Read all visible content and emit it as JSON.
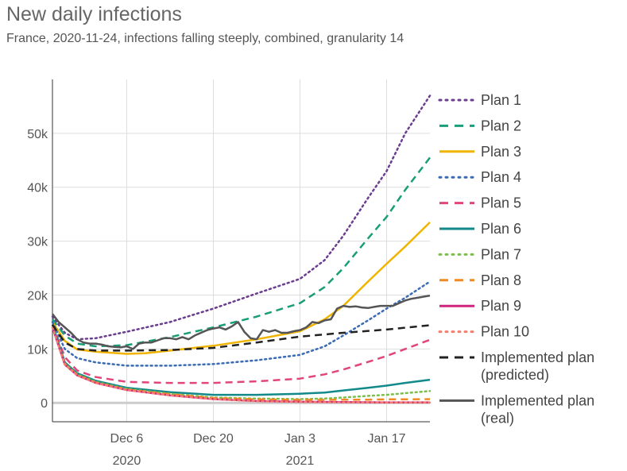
{
  "chart_data": {
    "type": "line",
    "title": "New daily infections",
    "subtitle": "France, 2020-11-24, infections falling steeply, combined, granularity 14",
    "x_ticks": [
      {
        "date": "2020-12-06",
        "label": "Dec 6",
        "sublabel": "2020"
      },
      {
        "date": "2020-12-20",
        "label": "Dec 20",
        "sublabel": ""
      },
      {
        "date": "2021-01-03",
        "label": "Jan 3",
        "sublabel": "2021"
      },
      {
        "date": "2021-01-17",
        "label": "Jan 17",
        "sublabel": ""
      }
    ],
    "x_range": [
      "2020-11-24",
      "2021-01-24"
    ],
    "y_ticks": [
      {
        "value": 0,
        "label": "0"
      },
      {
        "value": 10000,
        "label": "10k"
      },
      {
        "value": 20000,
        "label": "20k"
      },
      {
        "value": 30000,
        "label": "30k"
      },
      {
        "value": 40000,
        "label": "40k"
      },
      {
        "value": 50000,
        "label": "50k"
      }
    ],
    "ylim": [
      -3500,
      60000
    ],
    "grid": true,
    "legend_position": "right",
    "series": [
      {
        "name": "Plan 1",
        "color": "#6a3d8f",
        "dash": "dotted",
        "points": [
          [
            "2020-11-24",
            16000
          ],
          [
            "2020-11-26",
            13000
          ],
          [
            "2020-11-28",
            11800
          ],
          [
            "2020-12-01",
            12000
          ],
          [
            "2020-12-06",
            13200
          ],
          [
            "2020-12-13",
            15000
          ],
          [
            "2020-12-20",
            17500
          ],
          [
            "2020-12-27",
            20300
          ],
          [
            "2021-01-03",
            23000
          ],
          [
            "2021-01-07",
            26500
          ],
          [
            "2021-01-10",
            31000
          ],
          [
            "2021-01-14",
            38000
          ],
          [
            "2021-01-17",
            43000
          ],
          [
            "2021-01-20",
            50000
          ],
          [
            "2021-01-24",
            57000
          ]
        ]
      },
      {
        "name": "Plan 2",
        "color": "#1a9e77",
        "dash": "dashed",
        "points": [
          [
            "2020-11-24",
            15500
          ],
          [
            "2020-11-26",
            12500
          ],
          [
            "2020-11-28",
            11000
          ],
          [
            "2020-12-01",
            10500
          ],
          [
            "2020-12-06",
            10700
          ],
          [
            "2020-12-13",
            12200
          ],
          [
            "2020-12-20",
            14000
          ],
          [
            "2020-12-27",
            16000
          ],
          [
            "2021-01-03",
            18500
          ],
          [
            "2021-01-07",
            21500
          ],
          [
            "2021-01-10",
            25000
          ],
          [
            "2021-01-14",
            30500
          ],
          [
            "2021-01-17",
            34500
          ],
          [
            "2021-01-20",
            39500
          ],
          [
            "2021-01-24",
            45500
          ]
        ]
      },
      {
        "name": "Plan 3",
        "color": "#f0b400",
        "dash": "solid",
        "points": [
          [
            "2020-11-24",
            15000
          ],
          [
            "2020-11-26",
            11500
          ],
          [
            "2020-11-28",
            9900
          ],
          [
            "2020-12-01",
            9500
          ],
          [
            "2020-12-06",
            9100
          ],
          [
            "2020-12-09",
            9200
          ],
          [
            "2020-12-13",
            9700
          ],
          [
            "2020-12-20",
            10600
          ],
          [
            "2020-12-27",
            11800
          ],
          [
            "2021-01-03",
            13300
          ],
          [
            "2021-01-07",
            15500
          ],
          [
            "2021-01-10",
            18000
          ],
          [
            "2021-01-14",
            22500
          ],
          [
            "2021-01-17",
            25800
          ],
          [
            "2021-01-20",
            29000
          ],
          [
            "2021-01-24",
            33500
          ]
        ]
      },
      {
        "name": "Plan 4",
        "color": "#3b6bb5",
        "dash": "dotted",
        "points": [
          [
            "2020-11-24",
            15000
          ],
          [
            "2020-11-26",
            10000
          ],
          [
            "2020-11-28",
            8300
          ],
          [
            "2020-12-01",
            7500
          ],
          [
            "2020-12-06",
            6900
          ],
          [
            "2020-12-13",
            6900
          ],
          [
            "2020-12-20",
            7200
          ],
          [
            "2020-12-27",
            7900
          ],
          [
            "2021-01-03",
            8900
          ],
          [
            "2021-01-07",
            10500
          ],
          [
            "2021-01-10",
            12500
          ],
          [
            "2021-01-14",
            15300
          ],
          [
            "2021-01-17",
            17500
          ],
          [
            "2021-01-20",
            19500
          ],
          [
            "2021-01-24",
            22500
          ]
        ]
      },
      {
        "name": "Plan 5",
        "color": "#e0457b",
        "dash": "dashed",
        "points": [
          [
            "2020-11-24",
            14500
          ],
          [
            "2020-11-26",
            8500
          ],
          [
            "2020-11-28",
            6000
          ],
          [
            "2020-12-01",
            4800
          ],
          [
            "2020-12-06",
            3900
          ],
          [
            "2020-12-13",
            3700
          ],
          [
            "2020-12-20",
            3700
          ],
          [
            "2020-12-27",
            4000
          ],
          [
            "2021-01-03",
            4500
          ],
          [
            "2021-01-07",
            5300
          ],
          [
            "2021-01-10",
            6200
          ],
          [
            "2021-01-14",
            7600
          ],
          [
            "2021-01-17",
            8700
          ],
          [
            "2021-01-20",
            10000
          ],
          [
            "2021-01-24",
            11700
          ]
        ]
      },
      {
        "name": "Plan 6",
        "color": "#13898a",
        "dash": "solid",
        "points": [
          [
            "2020-11-24",
            14500
          ],
          [
            "2020-11-26",
            7500
          ],
          [
            "2020-11-28",
            5500
          ],
          [
            "2020-12-01",
            4100
          ],
          [
            "2020-12-06",
            2800
          ],
          [
            "2020-12-13",
            2000
          ],
          [
            "2020-12-20",
            1500
          ],
          [
            "2020-12-27",
            1500
          ],
          [
            "2021-01-03",
            1700
          ],
          [
            "2021-01-07",
            1900
          ],
          [
            "2021-01-10",
            2300
          ],
          [
            "2021-01-14",
            2800
          ],
          [
            "2021-01-17",
            3200
          ],
          [
            "2021-01-20",
            3700
          ],
          [
            "2021-01-24",
            4300
          ]
        ]
      },
      {
        "name": "Plan 7",
        "color": "#7cbf4a",
        "dash": "dotted",
        "points": [
          [
            "2020-11-24",
            14000
          ],
          [
            "2020-11-26",
            7300
          ],
          [
            "2020-11-28",
            5300
          ],
          [
            "2020-12-01",
            3900
          ],
          [
            "2020-12-06",
            2600
          ],
          [
            "2020-12-13",
            1700
          ],
          [
            "2020-12-20",
            1000
          ],
          [
            "2020-12-27",
            800
          ],
          [
            "2021-01-03",
            700
          ],
          [
            "2021-01-07",
            800
          ],
          [
            "2021-01-10",
            1000
          ],
          [
            "2021-01-14",
            1300
          ],
          [
            "2021-01-17",
            1500
          ],
          [
            "2021-01-20",
            1800
          ],
          [
            "2021-01-24",
            2200
          ]
        ]
      },
      {
        "name": "Plan 8",
        "color": "#f08a24",
        "dash": "dashed",
        "points": [
          [
            "2020-11-24",
            14000
          ],
          [
            "2020-11-26",
            7200
          ],
          [
            "2020-11-28",
            5200
          ],
          [
            "2020-12-01",
            3800
          ],
          [
            "2020-12-06",
            2500
          ],
          [
            "2020-12-13",
            1600
          ],
          [
            "2020-12-20",
            900
          ],
          [
            "2020-12-27",
            650
          ],
          [
            "2021-01-03",
            550
          ],
          [
            "2021-01-07",
            550
          ],
          [
            "2021-01-10",
            600
          ],
          [
            "2021-01-14",
            600
          ],
          [
            "2021-01-17",
            650
          ],
          [
            "2021-01-20",
            650
          ],
          [
            "2021-01-24",
            700
          ]
        ]
      },
      {
        "name": "Plan 9",
        "color": "#d0257f",
        "dash": "solid",
        "points": [
          [
            "2020-11-24",
            14000
          ],
          [
            "2020-11-26",
            7100
          ],
          [
            "2020-11-28",
            5100
          ],
          [
            "2020-12-01",
            3700
          ],
          [
            "2020-12-06",
            2400
          ],
          [
            "2020-12-13",
            1400
          ],
          [
            "2020-12-20",
            700
          ],
          [
            "2020-12-27",
            350
          ],
          [
            "2021-01-03",
            200
          ],
          [
            "2021-01-10",
            150
          ],
          [
            "2021-01-17",
            100
          ],
          [
            "2021-01-24",
            100
          ]
        ]
      },
      {
        "name": "Plan 10",
        "color": "#f47e6e",
        "dash": "dotted",
        "points": [
          [
            "2020-11-24",
            14000
          ],
          [
            "2020-11-26",
            7100
          ],
          [
            "2020-11-28",
            5100
          ],
          [
            "2020-12-01",
            3700
          ],
          [
            "2020-12-06",
            2400
          ],
          [
            "2020-12-13",
            1400
          ],
          [
            "2020-12-20",
            700
          ],
          [
            "2020-12-27",
            300
          ],
          [
            "2021-01-03",
            150
          ],
          [
            "2021-01-10",
            100
          ],
          [
            "2021-01-17",
            80
          ],
          [
            "2021-01-24",
            80
          ]
        ]
      },
      {
        "name": "Implemented plan\n(predicted)",
        "color": "#222222",
        "dash": "dashed",
        "points": [
          [
            "2020-11-24",
            14500
          ],
          [
            "2020-11-26",
            11200
          ],
          [
            "2020-11-28",
            10000
          ],
          [
            "2020-12-01",
            9700
          ],
          [
            "2020-12-06",
            9700
          ],
          [
            "2020-12-13",
            9800
          ],
          [
            "2020-12-20",
            10200
          ],
          [
            "2020-12-27",
            11200
          ],
          [
            "2021-01-03",
            12300
          ],
          [
            "2021-01-10",
            13000
          ],
          [
            "2021-01-17",
            13600
          ],
          [
            "2021-01-24",
            14400
          ]
        ]
      },
      {
        "name": "Implemented plan\n(real)",
        "color": "#555555",
        "dash": "solid",
        "points": [
          [
            "2020-11-24",
            16500
          ],
          [
            "2020-11-25",
            15000
          ],
          [
            "2020-11-26",
            14000
          ],
          [
            "2020-11-27",
            13000
          ],
          [
            "2020-11-28",
            11800
          ],
          [
            "2020-11-29",
            11200
          ],
          [
            "2020-11-30",
            11000
          ],
          [
            "2020-12-01",
            11000
          ],
          [
            "2020-12-02",
            10800
          ],
          [
            "2020-12-03",
            10500
          ],
          [
            "2020-12-04",
            10400
          ],
          [
            "2020-12-05",
            10300
          ],
          [
            "2020-12-06",
            10500
          ],
          [
            "2020-12-07",
            10000
          ],
          [
            "2020-12-08",
            11000
          ],
          [
            "2020-12-09",
            11200
          ],
          [
            "2020-12-10",
            11200
          ],
          [
            "2020-12-11",
            11600
          ],
          [
            "2020-12-12",
            12000
          ],
          [
            "2020-12-13",
            12000
          ],
          [
            "2020-12-14",
            11800
          ],
          [
            "2020-12-15",
            12200
          ],
          [
            "2020-12-16",
            11800
          ],
          [
            "2020-12-17",
            12500
          ],
          [
            "2020-12-18",
            13000
          ],
          [
            "2020-12-19",
            13500
          ],
          [
            "2020-12-20",
            13800
          ],
          [
            "2020-12-21",
            14000
          ],
          [
            "2020-12-22",
            13600
          ],
          [
            "2020-12-23",
            14200
          ],
          [
            "2020-12-24",
            15000
          ],
          [
            "2020-12-25",
            13200
          ],
          [
            "2020-12-26",
            12000
          ],
          [
            "2020-12-27",
            11800
          ],
          [
            "2020-12-28",
            13500
          ],
          [
            "2020-12-29",
            13200
          ],
          [
            "2020-12-30",
            13500
          ],
          [
            "2020-12-31",
            13000
          ],
          [
            "2021-01-01",
            13000
          ],
          [
            "2021-01-02",
            13300
          ],
          [
            "2021-01-03",
            13500
          ],
          [
            "2021-01-04",
            14000
          ],
          [
            "2021-01-05",
            15000
          ],
          [
            "2021-01-06",
            14800
          ],
          [
            "2021-01-07",
            15300
          ],
          [
            "2021-01-08",
            15500
          ],
          [
            "2021-01-09",
            17500
          ],
          [
            "2021-01-10",
            18000
          ],
          [
            "2021-01-11",
            17800
          ],
          [
            "2021-01-12",
            17900
          ],
          [
            "2021-01-13",
            17700
          ],
          [
            "2021-01-14",
            17600
          ],
          [
            "2021-01-15",
            17800
          ],
          [
            "2021-01-16",
            18000
          ],
          [
            "2021-01-17",
            18000
          ],
          [
            "2021-01-18",
            18000
          ],
          [
            "2021-01-19",
            18500
          ],
          [
            "2021-01-20",
            19000
          ],
          [
            "2021-01-21",
            19300
          ],
          [
            "2021-01-22",
            19500
          ],
          [
            "2021-01-23",
            19700
          ],
          [
            "2021-01-24",
            19900
          ]
        ]
      }
    ]
  }
}
